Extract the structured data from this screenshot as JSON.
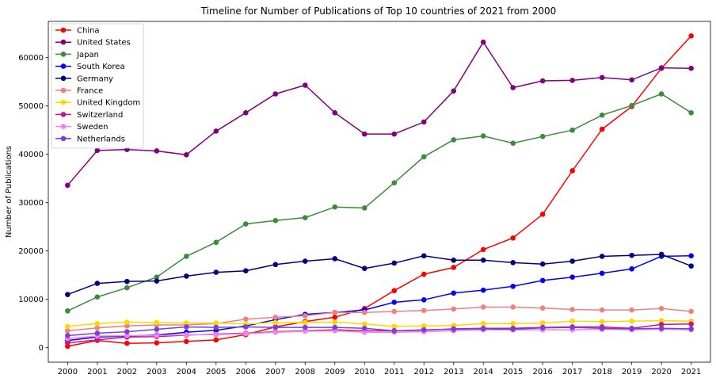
{
  "chart_data": {
    "type": "line",
    "title": "Timeline for Number of Publications of Top 10 countries of 2021 from 2000",
    "xlabel": "",
    "ylabel": "Number of Publications",
    "x": [
      "2000",
      "2001",
      "2002",
      "2003",
      "2004",
      "2005",
      "2006",
      "2007",
      "2008",
      "2009",
      "2010",
      "2011",
      "2012",
      "2013",
      "2014",
      "2015",
      "2016",
      "2017",
      "2018",
      "2019",
      "2020",
      "2021"
    ],
    "ylim": [
      -3000,
      67500
    ],
    "yticks": [
      0,
      10000,
      20000,
      30000,
      40000,
      50000,
      60000
    ],
    "grid": false,
    "legend_position": "top-left",
    "series": [
      {
        "name": "China",
        "color": "#ff0000",
        "values": [
          300,
          1500,
          900,
          1000,
          1300,
          1600,
          2700,
          4300,
          5400,
          6300,
          8100,
          11800,
          15200,
          16600,
          20300,
          22700,
          27600,
          36600,
          45200,
          49900,
          57800,
          64500
        ]
      },
      {
        "name": "United States",
        "color": "#800080",
        "values": [
          33600,
          40800,
          41000,
          40700,
          39900,
          44800,
          48600,
          52500,
          54300,
          48600,
          44200,
          44200,
          46700,
          53100,
          63200,
          53800,
          55200,
          55300,
          55900,
          55400,
          57900,
          57800
        ]
      },
      {
        "name": "Japan",
        "color": "#3a8b3a",
        "values": [
          7600,
          10500,
          12400,
          14600,
          18900,
          21800,
          25600,
          26300,
          26900,
          29100,
          28900,
          34100,
          39500,
          43000,
          43800,
          42300,
          43700,
          45000,
          48100,
          50100,
          52500,
          48600
        ]
      },
      {
        "name": "South Korea",
        "color": "#0000ff",
        "values": [
          1500,
          2200,
          2400,
          2600,
          3200,
          3600,
          4500,
          5800,
          6900,
          7300,
          7800,
          9400,
          9900,
          11300,
          11900,
          12700,
          13900,
          14600,
          15400,
          16300,
          18900,
          19000
        ]
      },
      {
        "name": "Germany",
        "color": "#00007f",
        "values": [
          11000,
          13300,
          13700,
          13800,
          14800,
          15600,
          15900,
          17200,
          17900,
          18400,
          16400,
          17500,
          19000,
          18100,
          18100,
          17600,
          17300,
          17900,
          18900,
          19100,
          19300,
          16900
        ]
      },
      {
        "name": "France",
        "color": "#f08080",
        "values": [
          3500,
          4100,
          4500,
          4700,
          4700,
          5000,
          5900,
          6300,
          6600,
          7300,
          7300,
          7500,
          7700,
          8000,
          8400,
          8400,
          8200,
          7900,
          7800,
          7800,
          8100,
          7500
        ]
      },
      {
        "name": "United Kingdom",
        "color": "#ffd700",
        "values": [
          4400,
          5000,
          5300,
          5200,
          5100,
          5100,
          4900,
          5200,
          5200,
          5300,
          4900,
          4400,
          4500,
          4600,
          5000,
          5000,
          5100,
          5500,
          5400,
          5500,
          5600,
          5500
        ]
      },
      {
        "name": "Switzerland",
        "color": "#c71585",
        "values": [
          1000,
          1600,
          2200,
          2300,
          2600,
          2800,
          3000,
          3300,
          3500,
          3700,
          3500,
          3500,
          3600,
          3900,
          4000,
          4000,
          4200,
          4300,
          4300,
          4000,
          4800,
          4900
        ]
      },
      {
        "name": "Sweden",
        "color": "#ee82ee",
        "values": [
          1900,
          2400,
          2500,
          2500,
          2700,
          2700,
          2900,
          3200,
          3400,
          3500,
          3200,
          3200,
          3300,
          3500,
          3700,
          3700,
          3700,
          3700,
          3800,
          3700,
          3800,
          3700
        ]
      },
      {
        "name": "Netherlands",
        "color": "#7b3fd6",
        "values": [
          2500,
          3000,
          3300,
          3800,
          4300,
          4200,
          4300,
          4200,
          4200,
          4200,
          4000,
          3500,
          3700,
          3800,
          3900,
          3800,
          4100,
          4200,
          4000,
          3900,
          4000,
          3900
        ]
      }
    ]
  }
}
